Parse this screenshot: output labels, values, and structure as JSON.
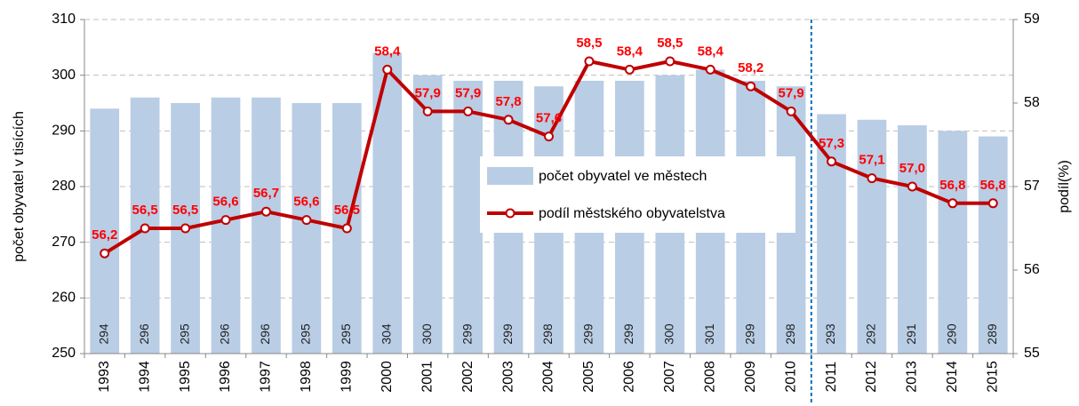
{
  "chart_data": {
    "type": "bar_line",
    "categories": [
      "1993",
      "1994",
      "1995",
      "1996",
      "1997",
      "1998",
      "1999",
      "2000",
      "2001",
      "2002",
      "2003",
      "2004",
      "2005",
      "2006",
      "2007",
      "2008",
      "2009",
      "2010",
      "2011",
      "2012",
      "2013",
      "2014",
      "2015"
    ],
    "series": [
      {
        "name": "počet obyvatel ve městech",
        "type": "bar",
        "color": "#b9cde5",
        "values": [
          294,
          296,
          295,
          296,
          296,
          295,
          295,
          304,
          300,
          299,
          299,
          298,
          299,
          299,
          300,
          301,
          299,
          298,
          293,
          292,
          291,
          290,
          289
        ]
      },
      {
        "name": "podíl městského obyvatelstva",
        "type": "line",
        "axis": "y2",
        "color": "#c00000",
        "values": [
          56.2,
          56.5,
          56.5,
          56.6,
          56.7,
          56.6,
          56.5,
          58.4,
          57.9,
          57.9,
          57.8,
          57.6,
          58.5,
          58.4,
          58.5,
          58.4,
          58.2,
          57.9,
          57.3,
          57.1,
          57.0,
          56.8,
          56.8
        ],
        "value_labels": [
          "56,2",
          "56,5",
          "56,5",
          "56,6",
          "56,7",
          "56,6",
          "56,5",
          "58,4",
          "57,9",
          "57,9",
          "57,8",
          "57,6",
          "58,5",
          "58,4",
          "58,5",
          "58,4",
          "58,2",
          "57,9",
          "57,3",
          "57,1",
          "57,0",
          "56,8",
          "56,8"
        ]
      }
    ],
    "ylabel": "počet obyvatel v tisících",
    "y2label": "podíl(%)",
    "ylim": [
      250,
      310
    ],
    "yticks": [
      250,
      260,
      270,
      280,
      290,
      300,
      310
    ],
    "y2lim": [
      55,
      59
    ],
    "y2ticks": [
      55,
      56,
      57,
      58,
      59
    ],
    "grid": true
  }
}
